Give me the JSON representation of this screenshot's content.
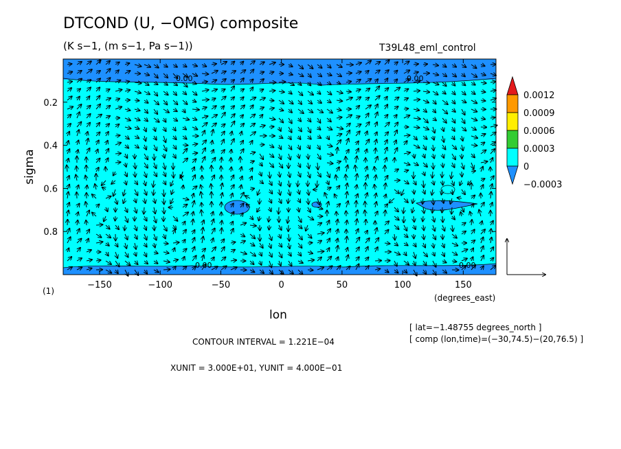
{
  "header": {
    "title": "DTCOND (U, −OMG) composite",
    "subtitle": "(K s−1, (m s−1, Pa s−1))",
    "run_name": "T39L48_eml_control"
  },
  "chart_data": {
    "type": "heatmap",
    "xlabel": "lon",
    "x_units_label": "(degrees_east)",
    "ylabel": "sigma",
    "y_extra_label": "(1)",
    "xlim": [
      -180,
      177
    ],
    "ylim": [
      1.0,
      0.0
    ],
    "x_ticks": [
      -150,
      -100,
      -50,
      0,
      50,
      100,
      150
    ],
    "y_ticks": [
      0.2,
      0.4,
      0.6,
      0.8
    ],
    "colorbar": {
      "levels": [
        "0.0012",
        "0.0009",
        "0.0006",
        "0.0003",
        "0",
        "-0.0003"
      ],
      "colors": [
        "#e41a1c",
        "#ff9900",
        "#ffee00",
        "#33cc33",
        "#00ffff",
        "#1e90ff"
      ]
    },
    "background_fill": "#00ffff",
    "negative_fill": "#1e90ff",
    "contour_labels": [
      "0.00",
      "0.00",
      "0.00",
      "0.00"
    ],
    "vector_field": "arrows showing (U, -OMG) composite",
    "reference_vector": {
      "x_unit": "3.000E+01",
      "y_unit": "4.000E-01"
    }
  },
  "footer": {
    "lat_info": "[ lat=−1.48755 degrees_north ]",
    "comp_info": "[ comp (lon,time)=(−30,74.5)−(20,76.5) ]",
    "contour_interval": "CONTOUR INTERVAL = 1.221E−04",
    "units_line": "XUNIT = 3.000E+01, YUNIT = 4.000E−01"
  }
}
